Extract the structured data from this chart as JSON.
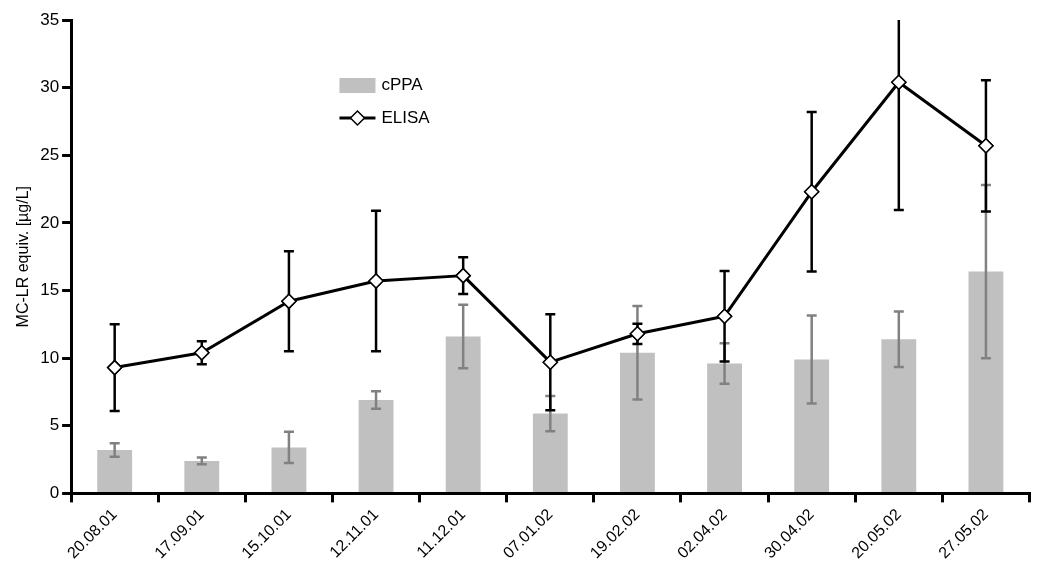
{
  "chart_data": {
    "type": "bar",
    "ylabel": "MC-LR equiv. [µg/L]",
    "categories": [
      "20.08.01",
      "17.09.01",
      "15.10.01",
      "12.11.01",
      "11.12.01",
      "07.01.02",
      "19.02.02",
      "02.04.02",
      "30.04.02",
      "20.05.02",
      "27.05.02"
    ],
    "series": [
      {
        "name": "cPPA",
        "color": "#c0c0c0",
        "values": [
          3.2,
          2.4,
          3.4,
          6.9,
          11.6,
          5.9,
          10.4,
          9.6,
          9.9,
          11.4,
          16.4
        ],
        "errors": [
          0.5,
          0.25,
          1.15,
          0.65,
          2.35,
          1.3,
          3.45,
          1.5,
          3.25,
          2.05,
          6.4
        ]
      },
      {
        "name": "ELISA",
        "type": "line",
        "color": "#000000",
        "marker": "diamond",
        "values": [
          9.3,
          10.4,
          14.2,
          15.7,
          16.1,
          9.7,
          11.8,
          13.1,
          22.3,
          30.4,
          25.7
        ],
        "errors": [
          3.2,
          0.85,
          3.7,
          5.2,
          1.35,
          3.55,
          0.75,
          3.35,
          5.9,
          [
            20.95,
            35
          ],
          4.85
        ]
      }
    ],
    "ylim": [
      0,
      35
    ],
    "yticks": [
      0,
      5,
      10,
      15,
      20,
      25,
      30,
      35
    ],
    "grid": false,
    "legend": "top left"
  }
}
